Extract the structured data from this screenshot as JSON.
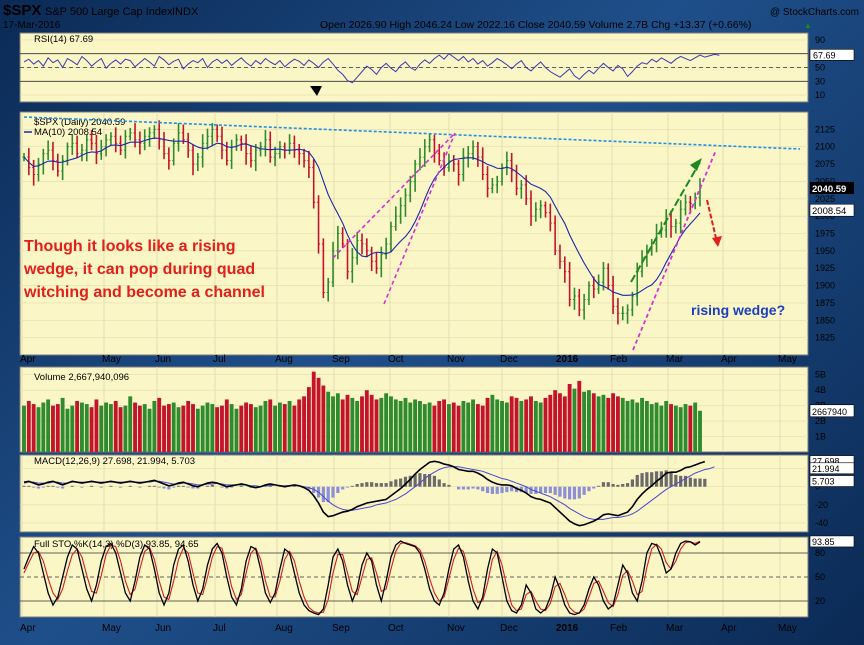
{
  "header": {
    "symbol": "$SPX",
    "name": "S&P 500 Large Cap Index",
    "exchange": "INDX",
    "date": "17-Mar-2016",
    "copyright": "@ StockCharts.com",
    "ohlc_text": "Open 2026.90  High 2046.24  Low 2022.16  Close 2040.59  Volume 2.7B  Chg +13.37 (+0.66%)",
    "chg_arrow": "▲"
  },
  "colors": {
    "panel_bg": "#fbf6c6",
    "up": "#2e8b2e",
    "down": "#c4142c",
    "ma": "#1a2aa8",
    "annot_red": "#e2201a",
    "annot_blue": "#1a3fc2",
    "trend_blue": "#1e90e8",
    "wedge_magenta": "#d630d6",
    "wedge_green": "#1e8a1e"
  },
  "annotations": {
    "text_lines": [
      "Though it looks like a rising",
      "wedge,  it can pop during quad",
      "witching and become a channel"
    ],
    "rising_wedge": "rising wedge?"
  },
  "chart_data": [
    {
      "panel": "rsi",
      "type": "line",
      "title": "RSI(14) 67.69",
      "last_label": "67.69",
      "ylim": [
        0,
        100
      ],
      "ticks": [
        90,
        70,
        50,
        30,
        10
      ],
      "reference_lines": [
        70,
        50,
        30
      ],
      "values": [
        58,
        62,
        55,
        60,
        52,
        64,
        57,
        61,
        50,
        63,
        59,
        54,
        66,
        60,
        52,
        58,
        63,
        49,
        56,
        61,
        55,
        62,
        60,
        51,
        57,
        63,
        58,
        52,
        66,
        61,
        54,
        59,
        62,
        48,
        55,
        60,
        57,
        63,
        50,
        58,
        62,
        56,
        61,
        53,
        59,
        64,
        57,
        52,
        60,
        55,
        63,
        58,
        54,
        60,
        51,
        57,
        62,
        59,
        53,
        61,
        56,
        50,
        58,
        63,
        55,
        46,
        40,
        31,
        28,
        36,
        44,
        52,
        47,
        40,
        50,
        56,
        49,
        44,
        53,
        58,
        50,
        46,
        55,
        61,
        56,
        63,
        68,
        62,
        70,
        65,
        60,
        66,
        58,
        63,
        55,
        60,
        52,
        57,
        63,
        59,
        54,
        48,
        55,
        60,
        50,
        45,
        52,
        58,
        50,
        44,
        40,
        36,
        42,
        48,
        38,
        33,
        40,
        46,
        41,
        49,
        56,
        50,
        45,
        53,
        48,
        37,
        44,
        52,
        57,
        55,
        62,
        58,
        64,
        60,
        56,
        62,
        66,
        63,
        60,
        64,
        68,
        65,
        67,
        69,
        67.69
      ]
    },
    {
      "panel": "price",
      "type": "line",
      "title": "$SPX (Daily) 2040.59",
      "series_names": [
        "$SPX (Daily) 2040.59",
        "MA(10) 2008.54"
      ],
      "ylim": [
        1800,
        2150
      ],
      "ticks": [
        2125,
        2100,
        2075,
        2050,
        2025,
        2000,
        1975,
        1950,
        1925,
        1900,
        1875,
        1850,
        1825
      ],
      "last_price_label": "2040.59",
      "ma_label": "2008.54",
      "months_x": [
        "Apr",
        "May",
        "Jun",
        "Jul",
        "Aug",
        "Sep",
        "Oct",
        "Nov",
        "Dec",
        "2016",
        "Feb",
        "Mar",
        "Apr",
        "May"
      ],
      "closes": [
        2085,
        2070,
        2060,
        2075,
        2090,
        2095,
        2080,
        2065,
        2080,
        2100,
        2105,
        2090,
        2095,
        2110,
        2105,
        2090,
        2100,
        2110,
        2115,
        2105,
        2095,
        2115,
        2120,
        2110,
        2105,
        2115,
        2120,
        2125,
        2110,
        2090,
        2080,
        2105,
        2120,
        2110,
        2095,
        2075,
        2085,
        2105,
        2115,
        2125,
        2115,
        2095,
        2080,
        2100,
        2110,
        2105,
        2090,
        2080,
        2095,
        2100,
        2110,
        2085,
        2090,
        2100,
        2095,
        2105,
        2095,
        2090,
        2080,
        2070,
        2020,
        1960,
        1890,
        1905,
        1950,
        1975,
        1960,
        1920,
        1940,
        1965,
        1960,
        1950,
        1935,
        1925,
        1945,
        1960,
        1985,
        2000,
        2015,
        2030,
        2050,
        2075,
        2085,
        2100,
        2110,
        2090,
        2080,
        2070,
        2080,
        2075,
        2060,
        2085,
        2090,
        2100,
        2085,
        2060,
        2040,
        2045,
        2050,
        2070,
        2080,
        2065,
        2040,
        2045,
        2025,
        2000,
        2010,
        2015,
        2005,
        1990,
        1950,
        1935,
        1920,
        1880,
        1885,
        1865,
        1880,
        1900,
        1895,
        1905,
        1925,
        1900,
        1870,
        1860,
        1860,
        1865,
        1885,
        1920,
        1940,
        1950,
        1960,
        1975,
        1980,
        2000,
        1985,
        1990,
        2010,
        2020,
        2018,
        2027,
        2040.59
      ]
    },
    {
      "panel": "volume",
      "type": "bar",
      "title": "Volume 2,667,940,096",
      "last_label": "2667940",
      "ylim": [
        0,
        5500
      ],
      "ticks": [
        "5B",
        "4B",
        "3B",
        "2B",
        "1B"
      ],
      "tick_values": [
        5000,
        4000,
        3000,
        2000,
        1000
      ],
      "unit": "millions",
      "values": [
        3000,
        3300,
        3100,
        2900,
        3200,
        3400,
        3000,
        3100,
        3500,
        2800,
        3000,
        3300,
        3200,
        3100,
        2900,
        3400,
        3000,
        3200,
        3100,
        3300,
        2900,
        3000,
        3600,
        3200,
        3000,
        3100,
        2800,
        3300,
        3500,
        3000,
        3100,
        3200,
        2900,
        3000,
        3300,
        3100,
        2800,
        3000,
        3200,
        3100,
        2900,
        3000,
        3400,
        3100,
        2800,
        3000,
        3200,
        3100,
        2900,
        3000,
        3300,
        3400,
        3000,
        3200,
        3100,
        3300,
        3000,
        3400,
        3600,
        4200,
        5200,
        4800,
        4300,
        3900,
        3600,
        3800,
        3400,
        3700,
        3500,
        3300,
        3600,
        4000,
        3700,
        3400,
        3500,
        3800,
        3600,
        3400,
        3300,
        3500,
        3200,
        3400,
        3300,
        3100,
        3200,
        3000,
        3300,
        3400,
        3100,
        3200,
        3000,
        3300,
        3200,
        3400,
        3100,
        3000,
        3500,
        3700,
        3400,
        3300,
        3200,
        3600,
        3500,
        3300,
        3400,
        3600,
        3300,
        3200,
        3500,
        3700,
        4000,
        3800,
        3600,
        4400,
        4100,
        4600,
        3900,
        4000,
        3800,
        3600,
        3700,
        3500,
        3800,
        3600,
        3500,
        3300,
        3400,
        3200,
        3500,
        3300,
        3100,
        3200,
        3000,
        3300,
        3100,
        3000,
        2900,
        3100,
        3000,
        3200,
        2668
      ]
    },
    {
      "panel": "macd",
      "type": "line",
      "title": "MACD(12,26,9) 27.698, 21.994, 5.703",
      "series_names": [
        "MACD 27.698",
        "Signal 21.994",
        "Histogram 5.703"
      ],
      "ylim": [
        -50,
        35
      ],
      "ticks": [
        20,
        0,
        -20,
        -40
      ],
      "tick_labels": [
        "",
        "0",
        "-20",
        "-40"
      ],
      "last_labels": [
        "27.698",
        "21.994",
        "5.703"
      ],
      "macd": [
        5,
        6,
        4,
        2,
        3,
        5,
        6,
        4,
        2,
        4,
        6,
        5,
        4,
        5,
        6,
        5,
        4,
        5,
        6,
        5,
        4,
        5,
        6,
        5,
        4,
        5,
        6,
        7,
        5,
        3,
        1,
        2,
        4,
        5,
        3,
        1,
        0,
        2,
        4,
        5,
        4,
        2,
        0,
        1,
        2,
        3,
        2,
        0,
        -1,
        0,
        2,
        3,
        2,
        1,
        0,
        1,
        2,
        1,
        -1,
        -4,
        -10,
        -18,
        -28,
        -33,
        -32,
        -30,
        -28,
        -27,
        -25,
        -22,
        -20,
        -18,
        -17,
        -16,
        -15,
        -14,
        -10,
        -6,
        -2,
        3,
        8,
        14,
        19,
        23,
        27,
        28,
        27,
        25,
        24,
        22,
        19,
        18,
        17,
        17,
        15,
        12,
        8,
        5,
        3,
        2,
        2,
        1,
        -2,
        -4,
        -7,
        -11,
        -13,
        -14,
        -16,
        -18,
        -23,
        -28,
        -33,
        -38,
        -41,
        -43,
        -42,
        -40,
        -38,
        -35,
        -31,
        -30,
        -31,
        -32,
        -30,
        -28,
        -22,
        -14,
        -8,
        -3,
        1,
        6,
        10,
        15,
        16,
        16,
        18,
        21,
        22,
        24,
        26,
        27.698
      ],
      "signal": [
        4,
        5,
        5,
        4,
        4,
        4,
        5,
        5,
        4,
        4,
        5,
        5,
        5,
        5,
        5,
        5,
        5,
        5,
        5,
        5,
        5,
        5,
        5,
        5,
        5,
        5,
        5,
        6,
        6,
        5,
        4,
        3,
        3,
        4,
        4,
        3,
        2,
        2,
        3,
        3,
        4,
        3,
        2,
        2,
        2,
        2,
        2,
        1,
        1,
        0,
        1,
        1,
        2,
        1,
        1,
        1,
        1,
        1,
        0,
        -1,
        -3,
        -6,
        -11,
        -16,
        -20,
        -23,
        -25,
        -26,
        -26,
        -25,
        -24,
        -23,
        -22,
        -20,
        -19,
        -18,
        -16,
        -14,
        -11,
        -8,
        -4,
        0,
        4,
        9,
        13,
        16,
        19,
        21,
        22,
        22,
        22,
        21,
        20,
        19,
        18,
        17,
        15,
        13,
        11,
        9,
        8,
        6,
        4,
        2,
        0,
        -3,
        -5,
        -7,
        -9,
        -11,
        -14,
        -17,
        -20,
        -24,
        -27,
        -30,
        -33,
        -35,
        -36,
        -36,
        -36,
        -35,
        -34,
        -34,
        -33,
        -32,
        -30,
        -27,
        -23,
        -19,
        -15,
        -11,
        -7,
        -3,
        0,
        3,
        6,
        9,
        12,
        15,
        17,
        19,
        20,
        21.994
      ]
    },
    {
      "panel": "sto",
      "type": "line",
      "title": "Full STO %K(14,3) %D(3) 93.85, 94.65",
      "series_names": [
        "%K 93.85",
        "%D 94.65"
      ],
      "ylim": [
        0,
        100
      ],
      "ticks": [
        80,
        50,
        20
      ],
      "reference_lines": [
        80,
        50,
        20
      ],
      "last_label": "93.85",
      "k": [
        60,
        75,
        88,
        80,
        55,
        30,
        15,
        25,
        50,
        75,
        90,
        85,
        60,
        35,
        20,
        40,
        70,
        88,
        92,
        80,
        55,
        30,
        20,
        45,
        75,
        90,
        85,
        60,
        30,
        15,
        30,
        65,
        85,
        90,
        70,
        40,
        20,
        35,
        65,
        85,
        92,
        80,
        50,
        25,
        15,
        35,
        70,
        88,
        85,
        60,
        30,
        18,
        30,
        60,
        85,
        80,
        55,
        30,
        15,
        8,
        5,
        3,
        10,
        40,
        75,
        85,
        70,
        40,
        20,
        35,
        65,
        80,
        70,
        40,
        20,
        45,
        75,
        90,
        95,
        92,
        90,
        88,
        80,
        60,
        35,
        20,
        15,
        30,
        60,
        85,
        90,
        75,
        45,
        20,
        10,
        25,
        60,
        85,
        80,
        50,
        20,
        8,
        5,
        15,
        40,
        30,
        10,
        5,
        10,
        25,
        50,
        35,
        15,
        5,
        3,
        5,
        15,
        35,
        50,
        40,
        20,
        10,
        15,
        40,
        65,
        55,
        30,
        20,
        45,
        80,
        92,
        90,
        75,
        55,
        60,
        80,
        92,
        95,
        94,
        90,
        93.85
      ],
      "d": [
        55,
        68,
        80,
        82,
        70,
        48,
        30,
        22,
        35,
        58,
        78,
        85,
        75,
        52,
        32,
        30,
        52,
        78,
        90,
        88,
        70,
        45,
        28,
        35,
        60,
        82,
        87,
        72,
        45,
        25,
        22,
        45,
        72,
        86,
        80,
        55,
        30,
        28,
        50,
        75,
        88,
        86,
        65,
        38,
        22,
        28,
        55,
        80,
        86,
        72,
        45,
        25,
        25,
        45,
        72,
        82,
        70,
        45,
        25,
        12,
        7,
        5,
        6,
        22,
        55,
        78,
        78,
        55,
        32,
        28,
        50,
        72,
        74,
        55,
        32,
        35,
        60,
        82,
        92,
        93,
        91,
        89,
        84,
        70,
        48,
        30,
        20,
        25,
        48,
        72,
        86,
        82,
        60,
        35,
        18,
        20,
        42,
        72,
        82,
        65,
        38,
        15,
        8,
        10,
        28,
        32,
        20,
        10,
        8,
        17,
        38,
        42,
        28,
        12,
        6,
        5,
        10,
        25,
        42,
        45,
        32,
        18,
        13,
        28,
        52,
        58,
        45,
        28,
        32,
        62,
        85,
        91,
        85,
        68,
        60,
        70,
        85,
        93,
        94,
        92,
        94.65
      ]
    }
  ]
}
